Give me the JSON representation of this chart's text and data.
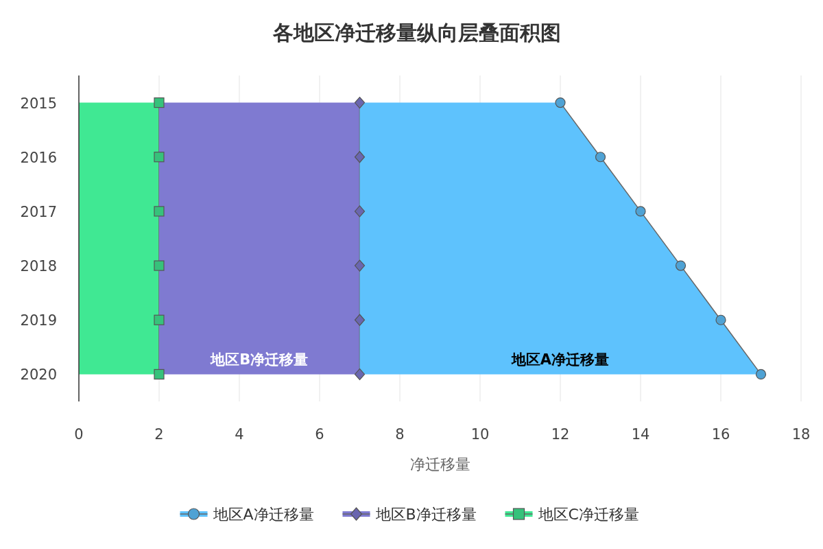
{
  "chart_data": {
    "type": "area",
    "title": "各地区净迁移量纵向层叠面积图",
    "orientation": "horizontal",
    "stacked": true,
    "categories": [
      "2015",
      "2016",
      "2017",
      "2018",
      "2019",
      "2020"
    ],
    "series": [
      {
        "name": "地区C净迁移量",
        "color": "#40e893",
        "marker": "square",
        "values": [
          2,
          2,
          2,
          2,
          2,
          2
        ]
      },
      {
        "name": "地区B净迁移量",
        "color": "#7f7ad1",
        "marker": "diamond",
        "values": [
          5,
          5,
          5,
          5,
          5,
          5
        ]
      },
      {
        "name": "地区A净迁移量",
        "color": "#5ec2fd",
        "marker": "circle",
        "values": [
          5,
          6,
          7,
          8,
          9,
          10
        ]
      }
    ],
    "xlim": [
      0,
      18
    ],
    "xticks": [
      0,
      2,
      4,
      6,
      8,
      10,
      12,
      14,
      16,
      18
    ],
    "xlabel": "净迁移量",
    "grid": "x",
    "legend": "bottom"
  }
}
